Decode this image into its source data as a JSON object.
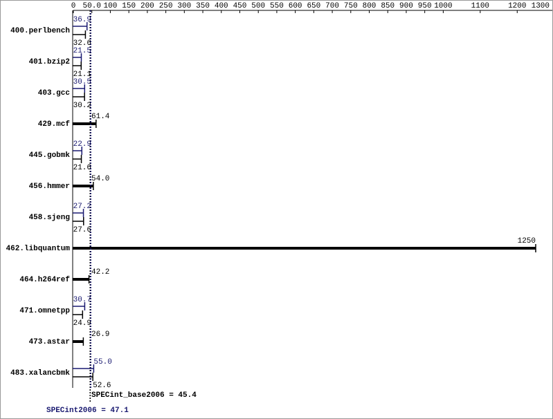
{
  "chart_data": {
    "type": "bar",
    "categories": [
      "400.perlbench",
      "401.bzip2",
      "403.gcc",
      "429.mcf",
      "445.gobmk",
      "456.hmmer",
      "458.sjeng",
      "462.libquantum",
      "464.h264ref",
      "471.omnetpp",
      "473.astar",
      "483.xalancbmk"
    ],
    "series": [
      {
        "name": "SPECint2006",
        "color": "#191970",
        "values": [
          36.9,
          21.5,
          30.5,
          null,
          22.9,
          null,
          27.2,
          null,
          null,
          30.7,
          null,
          55.0
        ],
        "value_labels": [
          "36.9",
          "21.5",
          "30.5",
          null,
          "22.9",
          null,
          "27.2",
          null,
          null,
          "30.7",
          null,
          "55.0"
        ]
      },
      {
        "name": "SPECint_base2006",
        "color": "#000000",
        "values": [
          32.6,
          21.1,
          30.2,
          61.4,
          21.6,
          54.0,
          27.6,
          1250,
          42.2,
          24.9,
          26.9,
          52.6
        ],
        "value_labels": [
          "32.6",
          "21.1",
          "30.2",
          "61.4",
          "21.6",
          "54.0",
          "27.6",
          "1250",
          "42.2",
          "24.9",
          "26.9",
          "52.6"
        ]
      }
    ],
    "xlim": [
      0,
      1300
    ],
    "xticks": [
      0,
      {
        "value": 50,
        "label": "50.0"
      },
      100,
      150,
      200,
      250,
      300,
      350,
      400,
      450,
      500,
      550,
      600,
      650,
      700,
      750,
      800,
      850,
      900,
      950,
      1000,
      1100,
      1200,
      1300
    ],
    "summary": [
      {
        "text": "SPECint_base2006 = 45.4",
        "value": 45.4,
        "color": "#000000"
      },
      {
        "text": "SPECint2006 = 47.1",
        "value": 47.1,
        "color": "#191970"
      }
    ]
  }
}
